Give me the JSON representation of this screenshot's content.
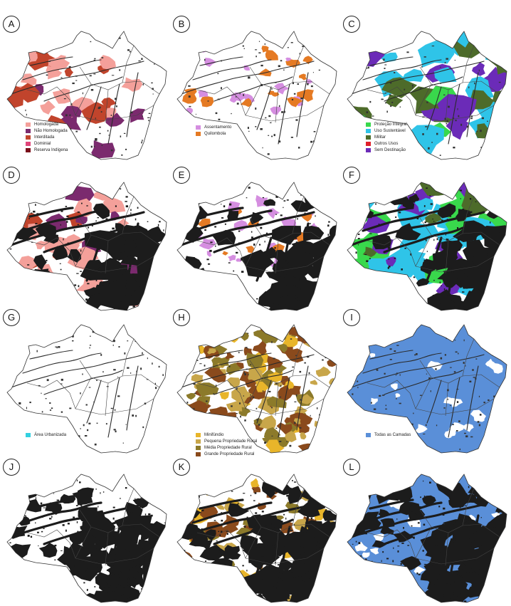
{
  "panels": [
    {
      "id": "A",
      "legend": [
        {
          "label": "Homologada",
          "color": "#f4a09a"
        },
        {
          "label": "Não Homologada",
          "color": "#7b2a6e"
        },
        {
          "label": "Interditada",
          "color": "#c1442c"
        },
        {
          "label": "Dominial",
          "color": "#e0457a"
        },
        {
          "label": "Reserva Indígena",
          "color": "#7a0d1a"
        }
      ]
    },
    {
      "id": "B",
      "legend": [
        {
          "label": "Assentamento",
          "color": "#d58ee0"
        },
        {
          "label": "Quilombola",
          "color": "#e57a23"
        }
      ]
    },
    {
      "id": "C",
      "legend": [
        {
          "label": "Proteção Integral",
          "color": "#39d84c"
        },
        {
          "label": "Uso Sustentável",
          "color": "#2fc4e8"
        },
        {
          "label": "Militar",
          "color": "#4d6b2a"
        },
        {
          "label": "Outros Usos",
          "color": "#e0202a"
        },
        {
          "label": "Sem Destinação",
          "color": "#6b2bb8"
        }
      ]
    },
    {
      "id": "D",
      "legend": []
    },
    {
      "id": "E",
      "legend": []
    },
    {
      "id": "F",
      "legend": []
    },
    {
      "id": "G",
      "legend": [
        {
          "label": "Área Urbanizada",
          "color": "#33d0e0"
        }
      ]
    },
    {
      "id": "H",
      "legend": [
        {
          "label": "Minifúndio",
          "color": "#e8b52a"
        },
        {
          "label": "Pequena Propriedade Rural",
          "color": "#c8a64a"
        },
        {
          "label": "Média Propriedade Rural",
          "color": "#8c7a2a"
        },
        {
          "label": "Grande Propriedade Rural",
          "color": "#8a4a1c"
        }
      ]
    },
    {
      "id": "I",
      "legend": [
        {
          "label": "Todas as Camadas",
          "color": "#5a8fd8"
        }
      ]
    },
    {
      "id": "J",
      "legend": []
    },
    {
      "id": "K",
      "legend": []
    },
    {
      "id": "L",
      "legend": []
    }
  ]
}
